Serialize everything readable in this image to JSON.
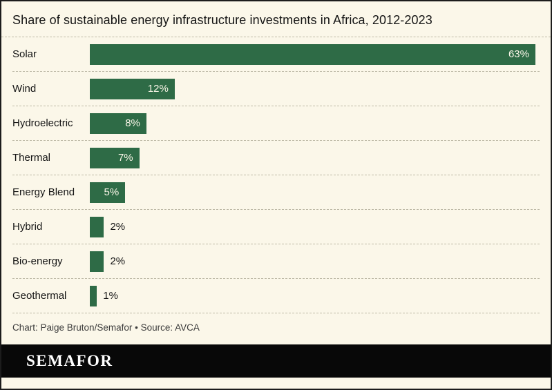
{
  "title": "Share of sustainable energy infrastructure investments in Africa, 2012-2023",
  "chart_data": {
    "type": "bar",
    "orientation": "horizontal",
    "title": "Share of sustainable energy infrastructure investments in Africa, 2012-2023",
    "categories": [
      "Solar",
      "Wind",
      "Hydroelectric",
      "Thermal",
      "Energy Blend",
      "Hybrid",
      "Bio-energy",
      "Geothermal"
    ],
    "values": [
      63,
      12,
      8,
      7,
      5,
      2,
      2,
      1
    ],
    "value_labels": [
      "63%",
      "12%",
      "8%",
      "7%",
      "5%",
      "2%",
      "2%",
      "1%"
    ],
    "unit": "%",
    "xlim": [
      0,
      63
    ],
    "bar_color": "#2E6B46",
    "inside_label_min": 5,
    "grid": false,
    "legend": false
  },
  "footer": {
    "credit": "Chart: Paige Bruton/Semafor  • Source: AVCA",
    "logo_text": "SEMAFOR"
  },
  "colors": {
    "background": "#FBF7E9",
    "border": "#1C1C1C",
    "bar": "#2E6B46",
    "divider": "#BDB9A6",
    "text": "#141414",
    "credit_text": "#3C3C3C",
    "logo_background": "#080808",
    "logo_text_color": "#FFFFFF",
    "value_label_inside": "#FAF6E8"
  }
}
